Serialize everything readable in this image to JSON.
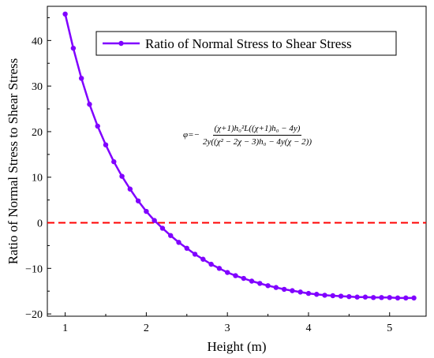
{
  "chart_data": {
    "type": "line",
    "title": "",
    "xlabel": "Height (m)",
    "ylabel": "Ratio of Normal Stress to Shear Stress",
    "xlim": [
      0.78,
      5.45
    ],
    "ylim": [
      -20.5,
      47.5
    ],
    "x_ticks": [
      1,
      2,
      3,
      4,
      5
    ],
    "y_ticks": [
      -20,
      -10,
      0,
      10,
      20,
      30,
      40
    ],
    "x_tick_labels": [
      "1",
      "2",
      "3",
      "4",
      "5"
    ],
    "y_tick_labels": [
      "−20",
      "−10",
      "0",
      "10",
      "20",
      "30",
      "40"
    ],
    "grid": false,
    "legend_position": "top-right",
    "series": [
      {
        "name": "Ratio of Normal Stress to Shear Stress",
        "color": "#8000ff",
        "marker": "circle",
        "x": [
          1.0,
          1.1,
          1.2,
          1.3,
          1.4,
          1.5,
          1.6,
          1.7,
          1.8,
          1.9,
          2.0,
          2.1,
          2.2,
          2.3,
          2.4,
          2.5,
          2.6,
          2.7,
          2.8,
          2.9,
          3.0,
          3.1,
          3.2,
          3.3,
          3.4,
          3.5,
          3.6,
          3.7,
          3.8,
          3.9,
          4.0,
          4.1,
          4.2,
          4.3,
          4.4,
          4.5,
          4.6,
          4.7,
          4.8,
          4.9,
          5.0,
          5.1,
          5.2,
          5.3
        ],
        "y": [
          45.8,
          38.3,
          31.7,
          26.0,
          21.2,
          17.1,
          13.4,
          10.2,
          7.4,
          4.8,
          2.5,
          0.5,
          -1.2,
          -2.8,
          -4.3,
          -5.6,
          -6.9,
          -8.0,
          -9.1,
          -10.0,
          -10.9,
          -11.6,
          -12.2,
          -12.8,
          -13.3,
          -13.8,
          -14.2,
          -14.6,
          -14.9,
          -15.2,
          -15.5,
          -15.7,
          -15.9,
          -16.0,
          -16.1,
          -16.2,
          -16.3,
          -16.3,
          -16.4,
          -16.4,
          -16.4,
          -16.5,
          -16.5,
          -16.5
        ]
      }
    ],
    "reference_line": {
      "y": 0,
      "color": "#ff0000",
      "style": "dashed"
    },
    "annotation": {
      "lhs": "φ=−",
      "numerator": "(χ+1)h₀²L((χ+1)h₀ − 4y)",
      "denominator": "2y((χ² − 2χ − 3)h₀ − 4y(χ − 2))"
    }
  }
}
